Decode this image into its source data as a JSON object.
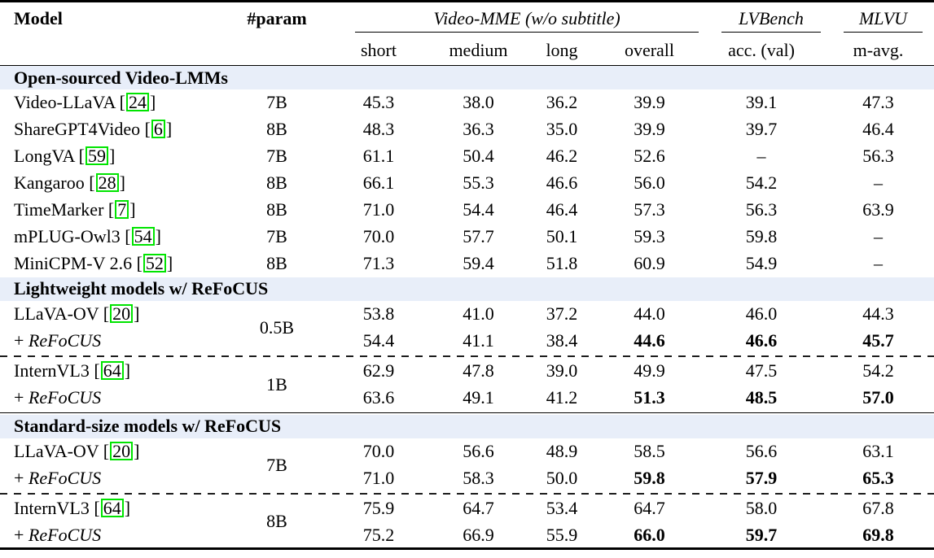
{
  "colors": {
    "section_band": "#e8eef9",
    "citation_green": "#00e400"
  },
  "table": {
    "header": {
      "model": "Model",
      "param": "#param",
      "groups": [
        {
          "label": "Video-MME (w/o subtitle)"
        },
        {
          "label": "LVBench"
        },
        {
          "label": "MLVU"
        }
      ],
      "sub": [
        "short",
        "medium",
        "long",
        "overall",
        "acc. (val)",
        "m-avg."
      ]
    },
    "rows": [
      {
        "type": "section",
        "label": "Open-sourced Video-LMMs"
      },
      {
        "type": "model",
        "name": "Video-LLaVA",
        "cite": "24",
        "param": "7B",
        "values": [
          "45.3",
          "38.0",
          "36.2",
          "39.9",
          "39.1",
          "47.3"
        ]
      },
      {
        "type": "model",
        "name": "ShareGPT4Video",
        "cite": "6",
        "param": "8B",
        "values": [
          "48.3",
          "36.3",
          "35.0",
          "39.9",
          "39.7",
          "46.4"
        ]
      },
      {
        "type": "model",
        "name": "LongVA",
        "cite": "59",
        "param": "7B",
        "values": [
          "61.1",
          "50.4",
          "46.2",
          "52.6",
          "–",
          "56.3"
        ]
      },
      {
        "type": "model",
        "name": "Kangaroo",
        "cite": "28",
        "param": "8B",
        "values": [
          "66.1",
          "55.3",
          "46.6",
          "56.0",
          "54.2",
          "–"
        ]
      },
      {
        "type": "model",
        "name": "TimeMarker",
        "cite": "7",
        "param": "8B",
        "values": [
          "71.0",
          "54.4",
          "46.4",
          "57.3",
          "56.3",
          "63.9"
        ]
      },
      {
        "type": "model",
        "name": "mPLUG-Owl3",
        "cite": "54",
        "param": "7B",
        "values": [
          "70.0",
          "57.7",
          "50.1",
          "59.3",
          "59.8",
          "–"
        ]
      },
      {
        "type": "model",
        "name": "MiniCPM-V 2.6",
        "cite": "52",
        "param": "8B",
        "values": [
          "71.3",
          "59.4",
          "51.8",
          "60.9",
          "54.9",
          "–"
        ]
      },
      {
        "type": "section",
        "label": "Lightweight models w/ ReFoCUS"
      },
      {
        "type": "model",
        "name": "LLaVA-OV",
        "cite": "20",
        "param": "0.5B",
        "paramSpan": 2,
        "values": [
          "53.8",
          "41.0",
          "37.2",
          "44.0",
          "46.0",
          "44.3"
        ]
      },
      {
        "type": "refocus",
        "prefix": "+ ",
        "name": "ReFoCUS",
        "values": [
          "54.4",
          "41.1",
          "38.4",
          "44.6",
          "46.6",
          "45.7"
        ],
        "bold": [
          3,
          4,
          5
        ]
      },
      {
        "type": "dashed"
      },
      {
        "type": "model",
        "name": "InternVL3",
        "cite": "64",
        "param": "1B",
        "paramSpan": 2,
        "values": [
          "62.9",
          "47.8",
          "39.0",
          "49.9",
          "47.5",
          "54.2"
        ]
      },
      {
        "type": "refocus",
        "prefix": "+ ",
        "name": "ReFoCUS",
        "values": [
          "63.6",
          "49.1",
          "41.2",
          "51.3",
          "48.5",
          "57.0"
        ],
        "bold": [
          3,
          4,
          5
        ]
      },
      {
        "type": "rule"
      },
      {
        "type": "section",
        "label": "Standard-size models w/ ReFoCUS"
      },
      {
        "type": "model",
        "name": "LLaVA-OV",
        "cite": "20",
        "param": "7B",
        "paramSpan": 2,
        "values": [
          "70.0",
          "56.6",
          "48.9",
          "58.5",
          "56.6",
          "63.1"
        ]
      },
      {
        "type": "refocus",
        "prefix": "+ ",
        "name": "ReFoCUS",
        "values": [
          "71.0",
          "58.3",
          "50.0",
          "59.8",
          "57.9",
          "65.3"
        ],
        "bold": [
          3,
          4,
          5
        ]
      },
      {
        "type": "dashed"
      },
      {
        "type": "model",
        "name": "InternVL3",
        "cite": "64",
        "param": "8B",
        "paramSpan": 2,
        "values": [
          "75.9",
          "64.7",
          "53.4",
          "64.7",
          "58.0",
          "67.8"
        ]
      },
      {
        "type": "refocus",
        "prefix": "+ ",
        "name": "ReFoCUS",
        "values": [
          "75.2",
          "66.9",
          "55.9",
          "66.0",
          "59.7",
          "69.8"
        ],
        "bold": [
          3,
          4,
          5
        ]
      }
    ]
  }
}
